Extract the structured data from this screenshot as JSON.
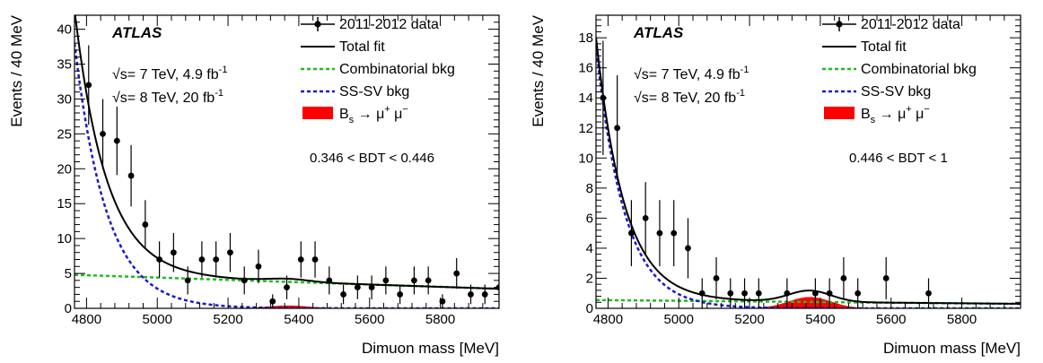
{
  "chart_data": [
    {
      "type": "scatter",
      "xlabel": "Dimuon mass [MeV]",
      "ylabel": "Events / 40 MeV",
      "xlim": [
        4766,
        5966
      ],
      "ylim": [
        0,
        42
      ],
      "xticks": [
        4800,
        5000,
        5200,
        5400,
        5600,
        5800
      ],
      "yticks": [
        0,
        5,
        10,
        15,
        20,
        25,
        30,
        35,
        40
      ],
      "experiment": "ATLAS",
      "lumi_lines": [
        {
          "pre": "√s= 7 TeV, 4.9 fb",
          "sup": "-1"
        },
        {
          "pre": "√s= 8 TeV, 20 fb",
          "sup": "-1"
        }
      ],
      "cut_label": "0.346 < BDT < 0.446",
      "legend": {
        "data": "2011-2012 data",
        "total": "Total fit",
        "comb": "Combinatorial bkg",
        "sssv": "SS-SV bkg",
        "signal": {
          "main": "B",
          "sub": "s",
          "rest": " → μ",
          "sup1": "+",
          "mid": " μ",
          "sup2": "−"
        }
      },
      "colors": {
        "data": "#000000",
        "total": "#000000",
        "comb": "#22bb22",
        "sssv": "#1a1acc",
        "signal": "#ff0000"
      },
      "data_points": [
        {
          "x": 4806,
          "y": 32,
          "err": 5.7
        },
        {
          "x": 4846,
          "y": 25,
          "err": 5.0
        },
        {
          "x": 4886,
          "y": 24,
          "err": 4.9
        },
        {
          "x": 4926,
          "y": 19,
          "err": 4.4
        },
        {
          "x": 4966,
          "y": 12,
          "err": 3.5
        },
        {
          "x": 5006,
          "y": 7,
          "err": 2.6
        },
        {
          "x": 5046,
          "y": 8,
          "err": 2.8
        },
        {
          "x": 5086,
          "y": 4,
          "err": 2.0
        },
        {
          "x": 5126,
          "y": 7,
          "err": 2.6
        },
        {
          "x": 5166,
          "y": 7,
          "err": 2.6
        },
        {
          "x": 5206,
          "y": 8,
          "err": 2.8
        },
        {
          "x": 5246,
          "y": 4,
          "err": 2.0
        },
        {
          "x": 5286,
          "y": 6,
          "err": 2.4
        },
        {
          "x": 5326,
          "y": 1,
          "err": 1.0
        },
        {
          "x": 5366,
          "y": 3,
          "err": 1.7
        },
        {
          "x": 5406,
          "y": 7,
          "err": 2.6
        },
        {
          "x": 5446,
          "y": 7,
          "err": 2.6
        },
        {
          "x": 5486,
          "y": 4,
          "err": 2.0
        },
        {
          "x": 5526,
          "y": 2,
          "err": 1.4
        },
        {
          "x": 5566,
          "y": 3,
          "err": 1.7
        },
        {
          "x": 5606,
          "y": 3,
          "err": 1.7
        },
        {
          "x": 5646,
          "y": 4,
          "err": 2.0
        },
        {
          "x": 5686,
          "y": 2,
          "err": 1.4
        },
        {
          "x": 5726,
          "y": 4,
          "err": 2.0
        },
        {
          "x": 5766,
          "y": 4,
          "err": 2.0
        },
        {
          "x": 5806,
          "y": 1,
          "err": 1.0
        },
        {
          "x": 5846,
          "y": 5,
          "err": 2.2
        },
        {
          "x": 5886,
          "y": 2,
          "err": 1.4
        },
        {
          "x": 5926,
          "y": 2,
          "err": 1.4
        },
        {
          "x": 5966,
          "y": 3,
          "err": 1.7
        }
      ],
      "model": {
        "comb_a": 4.8,
        "comb_b": 2.8,
        "sssv_amp": 38,
        "sssv_tau": 90,
        "sig_amp": 0.4,
        "sig_mean": 5370,
        "sig_sigma": 60
      }
    },
    {
      "type": "scatter",
      "xlabel": "Dimuon mass [MeV]",
      "ylabel": "Events / 40 MeV",
      "xlim": [
        4766,
        5966
      ],
      "ylim": [
        0,
        19.5
      ],
      "xticks": [
        4800,
        5000,
        5200,
        5400,
        5600,
        5800
      ],
      "yticks": [
        0,
        2,
        4,
        6,
        8,
        10,
        12,
        14,
        16,
        18
      ],
      "experiment": "ATLAS",
      "lumi_lines": [
        {
          "pre": "√s= 7 TeV, 4.9 fb",
          "sup": "-1"
        },
        {
          "pre": "√s= 8 TeV, 20 fb",
          "sup": "-1"
        }
      ],
      "cut_label": "0.446 < BDT < 1",
      "legend": {
        "data": "2011-2012 data",
        "total": "Total fit",
        "comb": "Combinatorial bkg",
        "sssv": "SS-SV bkg",
        "signal": {
          "main": "B",
          "sub": "s",
          "rest": " → μ",
          "sup1": "+",
          "mid": " μ",
          "sup2": "−"
        }
      },
      "colors": {
        "data": "#000000",
        "total": "#000000",
        "comb": "#22bb22",
        "sssv": "#1a1acc",
        "signal": "#ff0000"
      },
      "data_points": [
        {
          "x": 4786,
          "y": 14,
          "err": 3.8
        },
        {
          "x": 4826,
          "y": 12,
          "err": 3.5
        },
        {
          "x": 4866,
          "y": 5,
          "err": 2.2
        },
        {
          "x": 4906,
          "y": 6,
          "err": 2.4
        },
        {
          "x": 4946,
          "y": 5,
          "err": 2.2
        },
        {
          "x": 4986,
          "y": 5,
          "err": 2.2
        },
        {
          "x": 5026,
          "y": 4,
          "err": 2.0
        },
        {
          "x": 5066,
          "y": 1,
          "err": 1.0
        },
        {
          "x": 5106,
          "y": 2,
          "err": 1.4
        },
        {
          "x": 5146,
          "y": 1,
          "err": 1.0
        },
        {
          "x": 5186,
          "y": 1,
          "err": 1.0
        },
        {
          "x": 5226,
          "y": 1,
          "err": 1.0
        },
        {
          "x": 5306,
          "y": 1,
          "err": 1.0
        },
        {
          "x": 5386,
          "y": 1,
          "err": 1.0
        },
        {
          "x": 5426,
          "y": 1,
          "err": 1.0
        },
        {
          "x": 5466,
          "y": 2,
          "err": 1.4
        },
        {
          "x": 5506,
          "y": 1,
          "err": 1.0
        },
        {
          "x": 5586,
          "y": 2,
          "err": 1.4
        },
        {
          "x": 5706,
          "y": 1,
          "err": 1.0
        }
      ],
      "model": {
        "comb_a": 0.55,
        "comb_b": 0.3,
        "sssv_amp": 17.5,
        "sssv_tau": 80,
        "sig_amp": 0.75,
        "sig_mean": 5370,
        "sig_sigma": 60
      }
    }
  ]
}
